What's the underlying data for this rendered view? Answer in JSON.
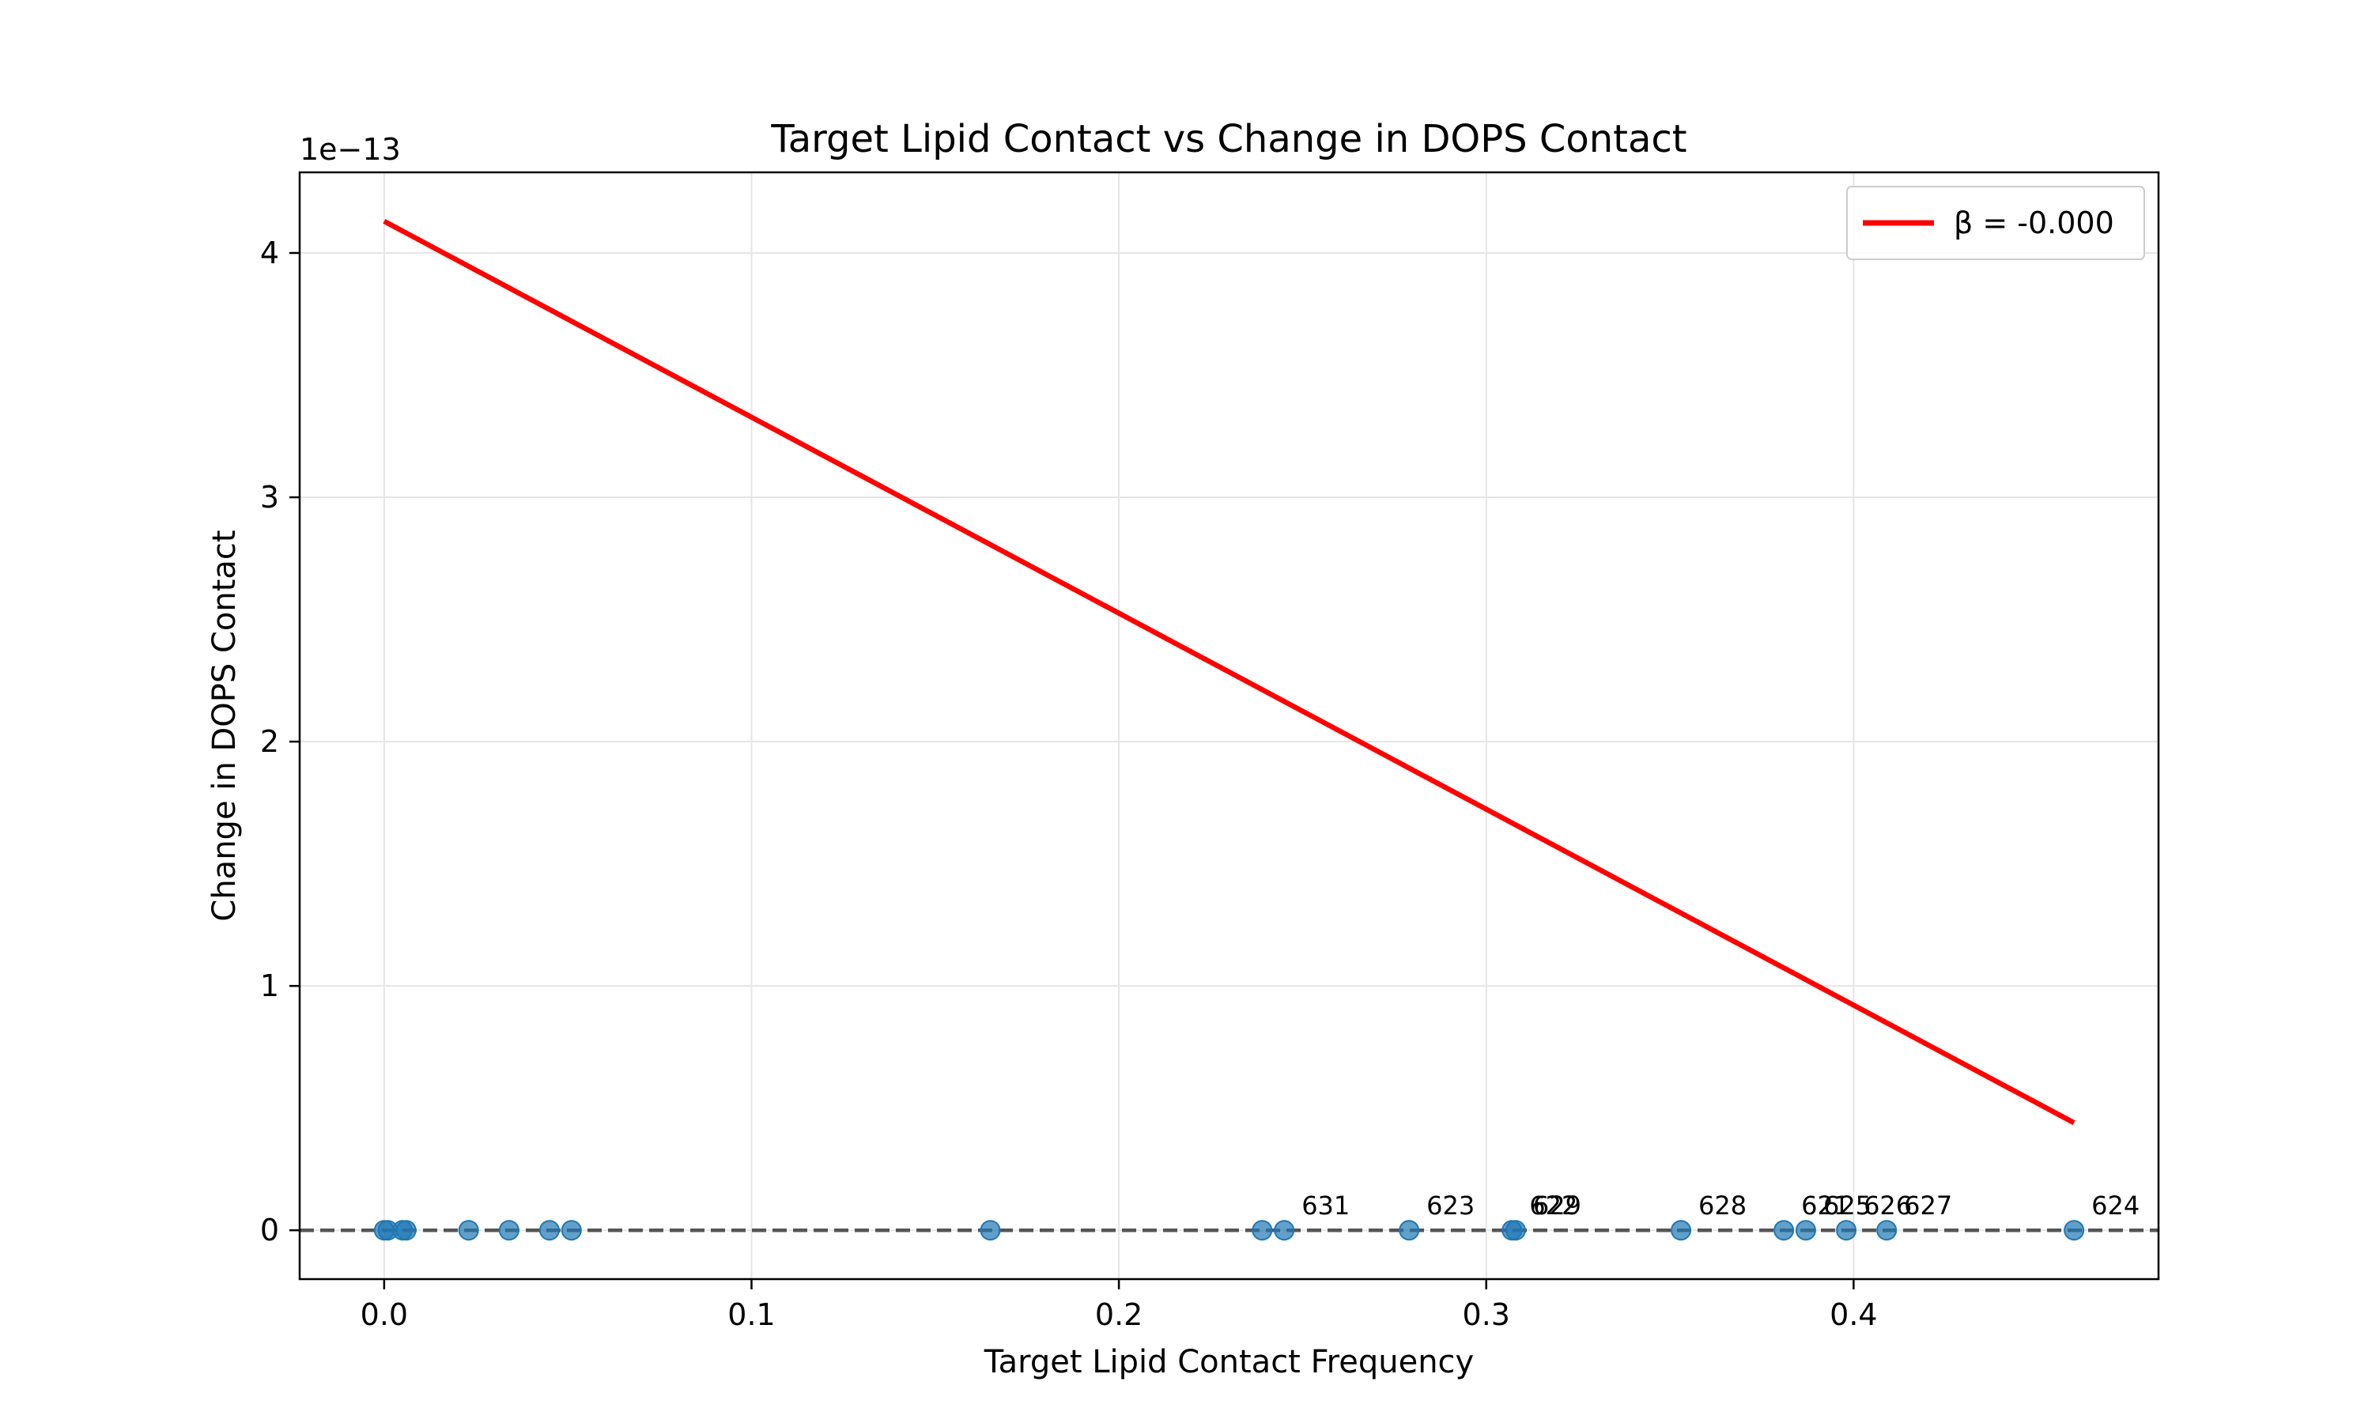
{
  "chart_data": {
    "type": "scatter",
    "title": "Target Lipid Contact vs Change in DOPS Contact",
    "xlabel": "Target Lipid Contact Frequency",
    "ylabel": "Change in DOPS Contact",
    "y_offset_text": "1e−13",
    "xlim": [
      -0.023,
      0.483
    ],
    "ylim": [
      -0.2,
      4.33
    ],
    "y_scale_factor": 1e-13,
    "xticks": [
      0.0,
      0.1,
      0.2,
      0.3,
      0.4
    ],
    "xtick_labels": [
      "0.0",
      "0.1",
      "0.2",
      "0.3",
      "0.4"
    ],
    "yticks": [
      0,
      1,
      2,
      3,
      4
    ],
    "ytick_labels": [
      "0",
      "1",
      "2",
      "3",
      "4"
    ],
    "grid": true,
    "points": {
      "color": "#1f77b4",
      "x": [
        0.0,
        0.001,
        0.005,
        0.006,
        0.023,
        0.034,
        0.045,
        0.051,
        0.165,
        0.239,
        0.245,
        0.279,
        0.307,
        0.308,
        0.353,
        0.381,
        0.387,
        0.398,
        0.409,
        0.46
      ],
      "y": [
        0,
        0,
        0,
        0,
        0,
        0,
        0,
        0,
        0,
        0,
        0,
        0,
        0,
        0,
        0,
        0,
        0,
        0,
        0,
        0
      ]
    },
    "annotations": [
      {
        "text": "631",
        "x": 0.245,
        "y": 0
      },
      {
        "text": "623",
        "x": 0.279,
        "y": 0
      },
      {
        "text": "622",
        "x": 0.307,
        "y": 0
      },
      {
        "text": "629",
        "x": 0.308,
        "y": 0
      },
      {
        "text": "628",
        "x": 0.353,
        "y": 0
      },
      {
        "text": "621",
        "x": 0.381,
        "y": 0
      },
      {
        "text": "625",
        "x": 0.387,
        "y": 0
      },
      {
        "text": "626",
        "x": 0.398,
        "y": 0
      },
      {
        "text": "627",
        "x": 0.409,
        "y": 0
      },
      {
        "text": "624",
        "x": 0.46,
        "y": 0
      }
    ],
    "fit_line": {
      "label": "β = -0.000",
      "color": "#ff0000",
      "x": [
        0.0,
        0.46
      ],
      "y": [
        4.13,
        0.44
      ]
    },
    "zero_line": {
      "y": 0,
      "color": "#555555",
      "style": "dashed"
    },
    "legend": {
      "position": "upper-right"
    }
  }
}
